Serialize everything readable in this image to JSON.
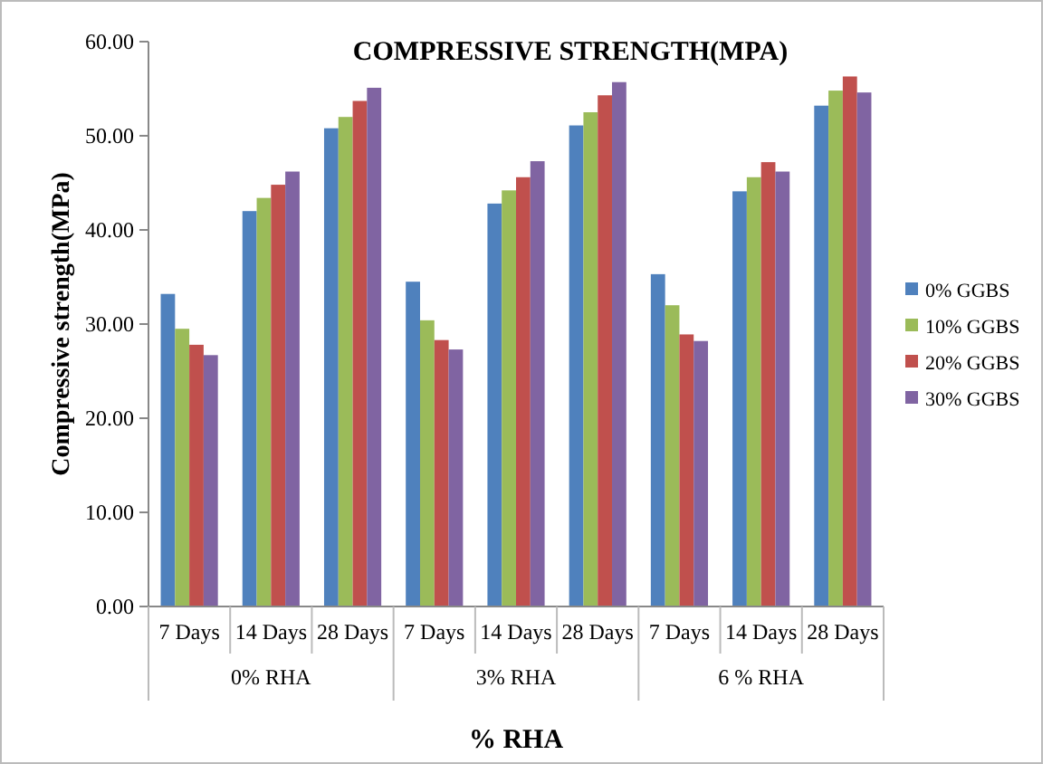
{
  "chart_data": {
    "type": "bar",
    "title": "COMPRESSIVE STRENGTH(MPA)",
    "xlabel": "% RHA",
    "ylabel": "Compressive strength(MPa)",
    "categories": [
      "7 Days",
      "14 Days",
      "28 Days",
      "7 Days",
      "14 Days",
      "28 Days",
      "7 Days",
      "14 Days",
      "28 Days"
    ],
    "annotations": [
      "0% RHA",
      "3% RHA",
      "6 % RHA"
    ],
    "series": [
      {
        "name": "0% GGBS",
        "color": "#4f81bd",
        "values": [
          33.2,
          42.0,
          50.8,
          34.5,
          42.8,
          51.1,
          35.3,
          44.1,
          53.2
        ]
      },
      {
        "name": "10% GGBS",
        "color": "#9bbb59",
        "values": [
          29.5,
          43.4,
          52.0,
          30.4,
          44.2,
          52.5,
          32.0,
          45.6,
          54.8
        ]
      },
      {
        "name": "20% GGBS",
        "color": "#c0504d",
        "values": [
          27.8,
          44.8,
          53.7,
          28.3,
          45.6,
          54.3,
          28.9,
          47.2,
          56.3
        ]
      },
      {
        "name": "30% GGBS",
        "color": "#8064a2",
        "values": [
          26.7,
          46.2,
          55.1,
          27.3,
          47.3,
          55.7,
          28.2,
          46.2,
          54.6
        ]
      }
    ],
    "ylim": [
      0,
      60
    ],
    "yticks": [
      {
        "value": 0,
        "label": "0.00"
      },
      {
        "value": 10,
        "label": "10.00"
      },
      {
        "value": 20,
        "label": "20.00"
      },
      {
        "value": 30,
        "label": "30.00"
      },
      {
        "value": 40,
        "label": "40.00"
      },
      {
        "value": 50,
        "label": "50.00"
      },
      {
        "value": 60,
        "label": "60.00"
      }
    ],
    "legend": "right",
    "grid": false
  }
}
